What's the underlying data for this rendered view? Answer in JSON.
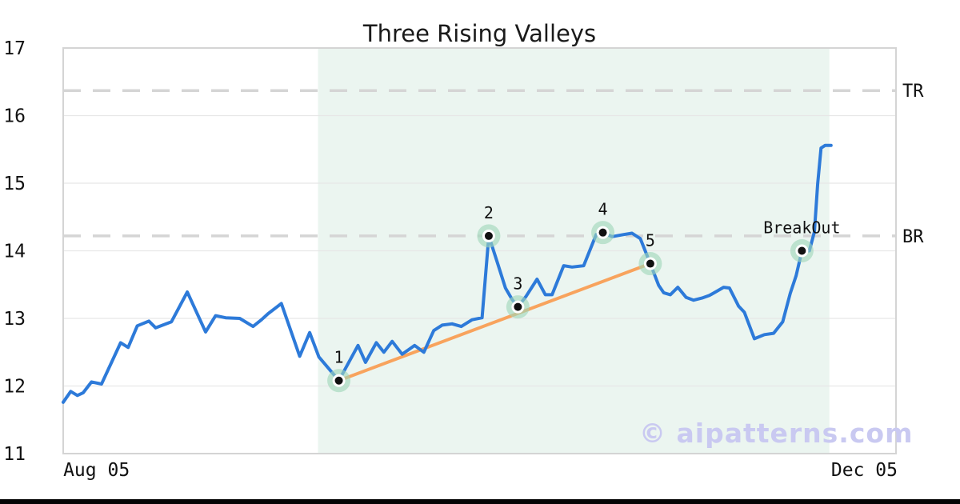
{
  "chart_data": {
    "type": "line",
    "title": "Three Rising Valleys",
    "xlabel": "",
    "ylabel": "",
    "ylim": [
      11,
      17
    ],
    "xlim_pct": [
      0,
      100
    ],
    "grid": "horizontal-only",
    "legend": "none",
    "y_ticks": [
      11,
      12,
      13,
      14,
      15,
      16,
      17
    ],
    "x_ticks": [
      {
        "label": "Aug 05",
        "pos": 4.0
      },
      {
        "label": "Dec 05",
        "pos": 96.2
      }
    ],
    "pattern_zone": {
      "x0": 30.6,
      "x1": 92.0,
      "color": "#ebf5f0"
    },
    "levels": [
      {
        "label": "TR",
        "value": 16.37
      },
      {
        "label": "BR",
        "value": 14.22
      }
    ],
    "level_style": {
      "color": "#d5d5d5",
      "dash": "22 15",
      "width": 3.5
    },
    "trendline": {
      "x0": 33.1,
      "y0": 12.08,
      "x1": 70.5,
      "y1": 13.81,
      "color": "#f8a35d",
      "width": 4
    },
    "series": [
      {
        "name": "price",
        "color": "#2d7ad9",
        "width": 4,
        "points": [
          [
            0,
            11.76
          ],
          [
            0.9,
            11.92
          ],
          [
            1.7,
            11.86
          ],
          [
            2.4,
            11.9
          ],
          [
            3.4,
            12.06
          ],
          [
            4.6,
            12.03
          ],
          [
            6.9,
            12.64
          ],
          [
            7.8,
            12.57
          ],
          [
            8.9,
            12.89
          ],
          [
            10.3,
            12.96
          ],
          [
            11.1,
            12.86
          ],
          [
            13,
            12.95
          ],
          [
            14.9,
            13.39
          ],
          [
            17.1,
            12.8
          ],
          [
            18.3,
            13.04
          ],
          [
            19.5,
            13.01
          ],
          [
            21.2,
            13
          ],
          [
            22.8,
            12.88
          ],
          [
            23.8,
            12.98
          ],
          [
            24.6,
            13.07
          ],
          [
            26.2,
            13.22
          ],
          [
            28.4,
            12.44
          ],
          [
            29.6,
            12.79
          ],
          [
            30.7,
            12.43
          ],
          [
            33.1,
            12.08
          ],
          [
            35.4,
            12.6
          ],
          [
            36.3,
            12.35
          ],
          [
            37.6,
            12.64
          ],
          [
            38.5,
            12.5
          ],
          [
            39.5,
            12.66
          ],
          [
            40.7,
            12.47
          ],
          [
            42.2,
            12.6
          ],
          [
            43.3,
            12.5
          ],
          [
            44.5,
            12.82
          ],
          [
            45.5,
            12.9
          ],
          [
            46.7,
            12.92
          ],
          [
            47.8,
            12.88
          ],
          [
            49.1,
            12.98
          ],
          [
            50.3,
            13.01
          ],
          [
            51.1,
            14.22
          ],
          [
            52.2,
            13.8
          ],
          [
            53.1,
            13.45
          ],
          [
            53.9,
            13.28
          ],
          [
            54.6,
            13.17
          ],
          [
            55.6,
            13.33
          ],
          [
            56.9,
            13.58
          ],
          [
            57.9,
            13.35
          ],
          [
            58.7,
            13.35
          ],
          [
            60.1,
            13.78
          ],
          [
            61.1,
            13.76
          ],
          [
            62.5,
            13.78
          ],
          [
            64,
            14.24
          ],
          [
            64.8,
            14.27
          ],
          [
            65.9,
            14.21
          ],
          [
            67.3,
            14.24
          ],
          [
            68.3,
            14.26
          ],
          [
            69.3,
            14.18
          ],
          [
            70.5,
            13.81
          ],
          [
            71.5,
            13.49
          ],
          [
            72.1,
            13.38
          ],
          [
            72.9,
            13.35
          ],
          [
            73.8,
            13.46
          ],
          [
            74.8,
            13.31
          ],
          [
            75.7,
            13.27
          ],
          [
            76.7,
            13.3
          ],
          [
            77.6,
            13.34
          ],
          [
            78.6,
            13.41
          ],
          [
            79.3,
            13.46
          ],
          [
            80,
            13.45
          ],
          [
            81.1,
            13.18
          ],
          [
            81.8,
            13.09
          ],
          [
            83,
            12.7
          ],
          [
            84.2,
            12.76
          ],
          [
            85.3,
            12.78
          ],
          [
            86.4,
            12.95
          ],
          [
            87.3,
            13.37
          ],
          [
            88,
            13.63
          ],
          [
            88.7,
            14
          ],
          [
            89.6,
            14
          ],
          [
            90.2,
            14.28
          ],
          [
            90.6,
            14.99
          ],
          [
            91,
            15.52
          ],
          [
            91.5,
            15.56
          ],
          [
            92.2,
            15.56
          ]
        ]
      }
    ],
    "markers": [
      {
        "label": "1",
        "x": 33.1,
        "y": 12.08
      },
      {
        "label": "2",
        "x": 51.1,
        "y": 14.22
      },
      {
        "label": "3",
        "x": 54.6,
        "y": 13.17
      },
      {
        "label": "4",
        "x": 64.8,
        "y": 14.27
      },
      {
        "label": "5",
        "x": 70.5,
        "y": 13.81
      },
      {
        "label": "BreakOut",
        "x": 88.7,
        "y": 14.0
      }
    ],
    "marker_style": {
      "halo_color": "#9fd6ba",
      "ring_color": "#ffffff",
      "dot_color": "#111111"
    },
    "axis_colors": {
      "border": "#d4d4d4",
      "grid": "#e7e7e7",
      "tick_text": "#111111"
    }
  },
  "watermark": {
    "text": "© aipatterns.com",
    "color": "#c9c9f1"
  }
}
